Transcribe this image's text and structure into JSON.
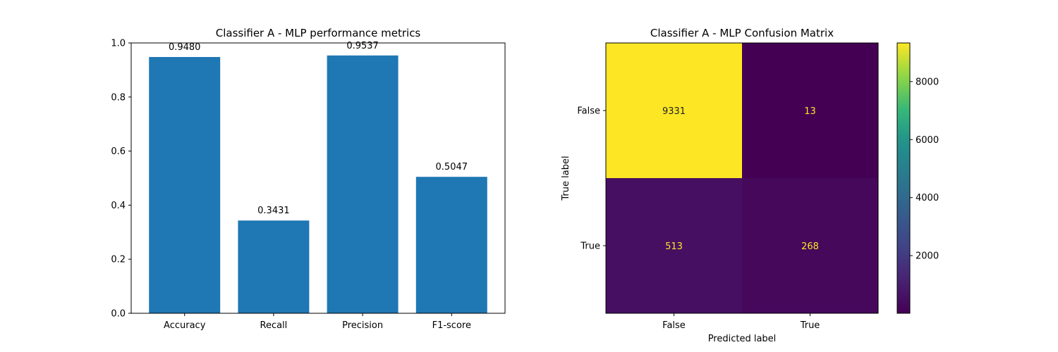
{
  "chart_data": [
    {
      "type": "bar",
      "title": "Classifier A - MLP performance metrics",
      "categories": [
        "Accuracy",
        "Recall",
        "Precision",
        "F1-score"
      ],
      "values": [
        0.948,
        0.3431,
        0.9537,
        0.5047
      ],
      "data_labels": [
        "0.9480",
        "0.3431",
        "0.9537",
        "0.5047"
      ],
      "xlabel": "",
      "ylabel": "",
      "ylim": [
        0,
        1.0
      ],
      "yticks": [
        0.0,
        0.2,
        0.4,
        0.6,
        0.8,
        1.0
      ],
      "ytick_labels": [
        "0.0",
        "0.2",
        "0.4",
        "0.6",
        "0.8",
        "1.0"
      ],
      "bar_color": "#1f77b4",
      "grid": false
    },
    {
      "type": "heatmap",
      "title": "Classifier A - MLP Confusion Matrix",
      "xlabel": "Predicted label",
      "ylabel": "True label",
      "x_categories": [
        "False",
        "True"
      ],
      "y_categories": [
        "False",
        "True"
      ],
      "matrix": [
        [
          9331,
          13
        ],
        [
          513,
          268
        ]
      ],
      "cell_labels": [
        [
          "9331",
          "13"
        ],
        [
          "513",
          "268"
        ]
      ],
      "colormap": "viridis",
      "colorbar_range": [
        13,
        9331
      ],
      "colorbar_ticks": [
        2000,
        4000,
        6000,
        8000
      ],
      "colorbar_tick_labels": [
        "2000",
        "4000",
        "6000",
        "8000"
      ],
      "text_color_dark_cells": "#fde725",
      "text_color_light_cells": "#440154"
    }
  ]
}
